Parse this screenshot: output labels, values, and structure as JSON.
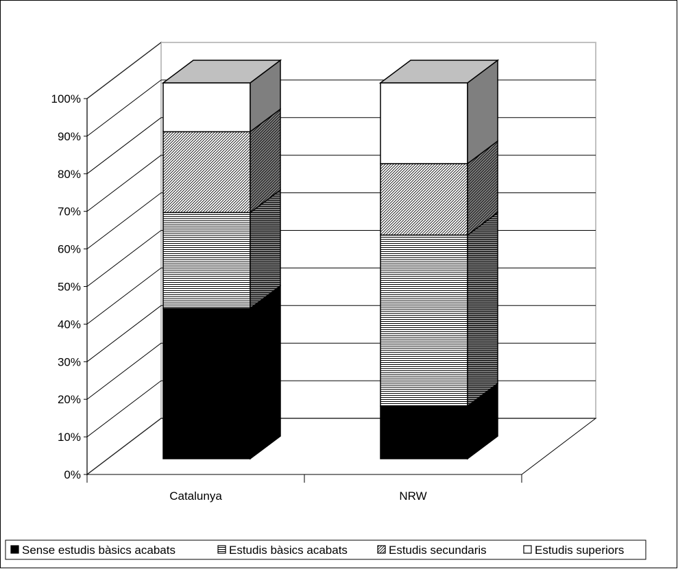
{
  "chart_data": {
    "type": "bar",
    "stacked": true,
    "percent": true,
    "three_d": true,
    "categories": [
      "Catalunya",
      "NRW"
    ],
    "series": [
      {
        "name": "Sense estudis bàsics acabats",
        "values": [
          40,
          14
        ],
        "pattern": "solid-black"
      },
      {
        "name": "Estudis bàsics acabats",
        "values": [
          25.5,
          45.5
        ],
        "pattern": "horizontal-lines"
      },
      {
        "name": "Estudis secundaris",
        "values": [
          21.5,
          19
        ],
        "pattern": "diagonal-hatch"
      },
      {
        "name": "Estudis superiors",
        "values": [
          13,
          21.5
        ],
        "pattern": "white"
      }
    ],
    "y_ticks": [
      "0%",
      "10%",
      "20%",
      "30%",
      "40%",
      "50%",
      "60%",
      "70%",
      "80%",
      "90%",
      "100%"
    ],
    "ylim": [
      0,
      100
    ],
    "grid": true,
    "legend_position": "bottom",
    "title": "",
    "xlabel": "",
    "ylabel": ""
  },
  "colors": {
    "wall_grey": "#c0c0c0",
    "top_grey": "#c0c0c0",
    "side_grey": "#7f7f7f",
    "black": "#000000",
    "white": "#ffffff"
  }
}
